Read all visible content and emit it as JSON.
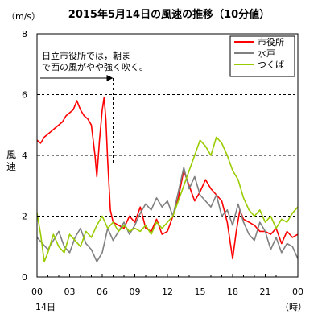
{
  "chart_data": {
    "type": "line",
    "title": "2015年5月14日の風速の推移（10分値）",
    "y_unit_label": "（m/s）",
    "ylabel": "風速",
    "x_unit_label": "（時）",
    "x_date_label": "14日",
    "x_range_hours": [
      0,
      24
    ],
    "ylim": [
      0,
      8
    ],
    "x_ticks": [
      {
        "hour": 0,
        "label": "00"
      },
      {
        "hour": 3,
        "label": "03"
      },
      {
        "hour": 6,
        "label": "06"
      },
      {
        "hour": 9,
        "label": "09"
      },
      {
        "hour": 12,
        "label": "12"
      },
      {
        "hour": 15,
        "label": "15"
      },
      {
        "hour": 18,
        "label": "18"
      },
      {
        "hour": 21,
        "label": "21"
      },
      {
        "hour": 24,
        "label": "00"
      }
    ],
    "y_ticks": [
      0,
      2,
      4,
      6,
      8
    ],
    "gridlines_y": [
      2,
      4,
      6
    ],
    "legend_position": "top-right",
    "annotation": {
      "lines": [
        "日立市役所では，朝ま",
        "で西の風がやや強く吹く。"
      ],
      "arrow_from_hour": 0,
      "arrow_to_hour": 7,
      "marker_hour": 7
    },
    "series": [
      {
        "name": "市役所",
        "color": "#ff0000",
        "points": [
          [
            0.0,
            4.5
          ],
          [
            0.33,
            4.4
          ],
          [
            0.67,
            4.6
          ],
          [
            1.0,
            4.7
          ],
          [
            1.33,
            4.8
          ],
          [
            1.67,
            4.9
          ],
          [
            2.0,
            5.0
          ],
          [
            2.33,
            5.1
          ],
          [
            2.67,
            5.3
          ],
          [
            3.0,
            5.4
          ],
          [
            3.33,
            5.5
          ],
          [
            3.67,
            5.8
          ],
          [
            4.0,
            5.5
          ],
          [
            4.33,
            5.3
          ],
          [
            4.67,
            5.2
          ],
          [
            5.0,
            5.0
          ],
          [
            5.33,
            4.0
          ],
          [
            5.5,
            3.3
          ],
          [
            5.75,
            4.5
          ],
          [
            6.0,
            5.5
          ],
          [
            6.17,
            5.9
          ],
          [
            6.33,
            5.2
          ],
          [
            6.5,
            3.8
          ],
          [
            6.75,
            2.2
          ],
          [
            7.0,
            1.8
          ],
          [
            7.5,
            1.7
          ],
          [
            8.0,
            1.6
          ],
          [
            8.5,
            2.0
          ],
          [
            9.0,
            1.8
          ],
          [
            9.5,
            2.3
          ],
          [
            10.0,
            1.6
          ],
          [
            10.5,
            1.5
          ],
          [
            11.0,
            1.9
          ],
          [
            11.5,
            1.4
          ],
          [
            12.0,
            1.5
          ],
          [
            12.5,
            2.0
          ],
          [
            13.0,
            2.6
          ],
          [
            13.5,
            3.5
          ],
          [
            14.0,
            3.0
          ],
          [
            14.5,
            2.5
          ],
          [
            15.0,
            2.8
          ],
          [
            15.5,
            3.2
          ],
          [
            16.0,
            2.9
          ],
          [
            16.5,
            2.7
          ],
          [
            17.0,
            2.5
          ],
          [
            17.5,
            1.8
          ],
          [
            18.0,
            0.6
          ],
          [
            18.33,
            1.5
          ],
          [
            18.67,
            2.2
          ],
          [
            19.0,
            1.9
          ],
          [
            19.5,
            1.8
          ],
          [
            20.0,
            1.7
          ],
          [
            20.5,
            1.5
          ],
          [
            21.0,
            1.5
          ],
          [
            21.5,
            1.4
          ],
          [
            22.0,
            1.6
          ],
          [
            22.5,
            1.1
          ],
          [
            23.0,
            1.5
          ],
          [
            23.5,
            1.3
          ],
          [
            24.0,
            1.4
          ]
        ]
      },
      {
        "name": "水戸",
        "color": "#808080",
        "points": [
          [
            0.0,
            1.3
          ],
          [
            0.5,
            1.1
          ],
          [
            1.0,
            0.9
          ],
          [
            1.5,
            1.2
          ],
          [
            2.0,
            1.5
          ],
          [
            2.5,
            1.0
          ],
          [
            3.0,
            0.8
          ],
          [
            3.5,
            1.3
          ],
          [
            4.0,
            1.6
          ],
          [
            4.5,
            1.1
          ],
          [
            5.0,
            0.9
          ],
          [
            5.5,
            0.5
          ],
          [
            6.0,
            0.8
          ],
          [
            6.5,
            1.6
          ],
          [
            7.0,
            1.2
          ],
          [
            7.5,
            1.5
          ],
          [
            8.0,
            1.8
          ],
          [
            8.5,
            1.4
          ],
          [
            9.0,
            1.7
          ],
          [
            9.5,
            2.1
          ],
          [
            10.0,
            2.4
          ],
          [
            10.5,
            2.2
          ],
          [
            11.0,
            2.6
          ],
          [
            11.5,
            2.3
          ],
          [
            12.0,
            2.5
          ],
          [
            12.5,
            2.0
          ],
          [
            13.0,
            2.8
          ],
          [
            13.5,
            3.6
          ],
          [
            14.0,
            2.9
          ],
          [
            14.5,
            3.3
          ],
          [
            15.0,
            2.7
          ],
          [
            15.5,
            2.5
          ],
          [
            16.0,
            2.3
          ],
          [
            16.5,
            2.7
          ],
          [
            17.0,
            2.0
          ],
          [
            17.5,
            2.2
          ],
          [
            18.0,
            1.7
          ],
          [
            18.5,
            2.4
          ],
          [
            19.0,
            1.8
          ],
          [
            19.5,
            1.4
          ],
          [
            20.0,
            1.2
          ],
          [
            20.5,
            1.8
          ],
          [
            21.0,
            1.5
          ],
          [
            21.5,
            0.9
          ],
          [
            22.0,
            1.3
          ],
          [
            22.5,
            0.8
          ],
          [
            23.0,
            1.1
          ],
          [
            23.5,
            1.0
          ],
          [
            24.0,
            0.6
          ]
        ]
      },
      {
        "name": "つくば",
        "color": "#99cc00",
        "points": [
          [
            0.0,
            2.1
          ],
          [
            0.33,
            1.4
          ],
          [
            0.67,
            0.5
          ],
          [
            1.0,
            0.8
          ],
          [
            1.5,
            1.4
          ],
          [
            2.0,
            1.0
          ],
          [
            2.5,
            0.8
          ],
          [
            3.0,
            1.4
          ],
          [
            3.5,
            1.2
          ],
          [
            4.0,
            1.0
          ],
          [
            4.5,
            1.5
          ],
          [
            5.0,
            1.3
          ],
          [
            5.5,
            1.7
          ],
          [
            6.0,
            2.0
          ],
          [
            6.5,
            1.6
          ],
          [
            7.0,
            1.8
          ],
          [
            7.5,
            1.5
          ],
          [
            8.0,
            1.7
          ],
          [
            8.5,
            1.5
          ],
          [
            9.0,
            1.6
          ],
          [
            9.5,
            1.5
          ],
          [
            10.0,
            1.7
          ],
          [
            10.5,
            1.4
          ],
          [
            11.0,
            1.8
          ],
          [
            11.5,
            1.6
          ],
          [
            12.0,
            1.8
          ],
          [
            12.5,
            2.0
          ],
          [
            13.0,
            2.5
          ],
          [
            13.5,
            3.0
          ],
          [
            14.0,
            3.5
          ],
          [
            14.5,
            4.0
          ],
          [
            15.0,
            4.5
          ],
          [
            15.5,
            4.3
          ],
          [
            16.0,
            4.0
          ],
          [
            16.5,
            4.6
          ],
          [
            17.0,
            4.4
          ],
          [
            17.5,
            4.0
          ],
          [
            18.0,
            3.5
          ],
          [
            18.5,
            3.2
          ],
          [
            19.0,
            2.6
          ],
          [
            19.5,
            2.2
          ],
          [
            20.0,
            2.0
          ],
          [
            20.5,
            2.2
          ],
          [
            21.0,
            1.8
          ],
          [
            21.5,
            2.0
          ],
          [
            22.0,
            1.6
          ],
          [
            22.5,
            1.9
          ],
          [
            23.0,
            1.8
          ],
          [
            23.5,
            2.1
          ],
          [
            24.0,
            2.3
          ]
        ]
      }
    ]
  }
}
